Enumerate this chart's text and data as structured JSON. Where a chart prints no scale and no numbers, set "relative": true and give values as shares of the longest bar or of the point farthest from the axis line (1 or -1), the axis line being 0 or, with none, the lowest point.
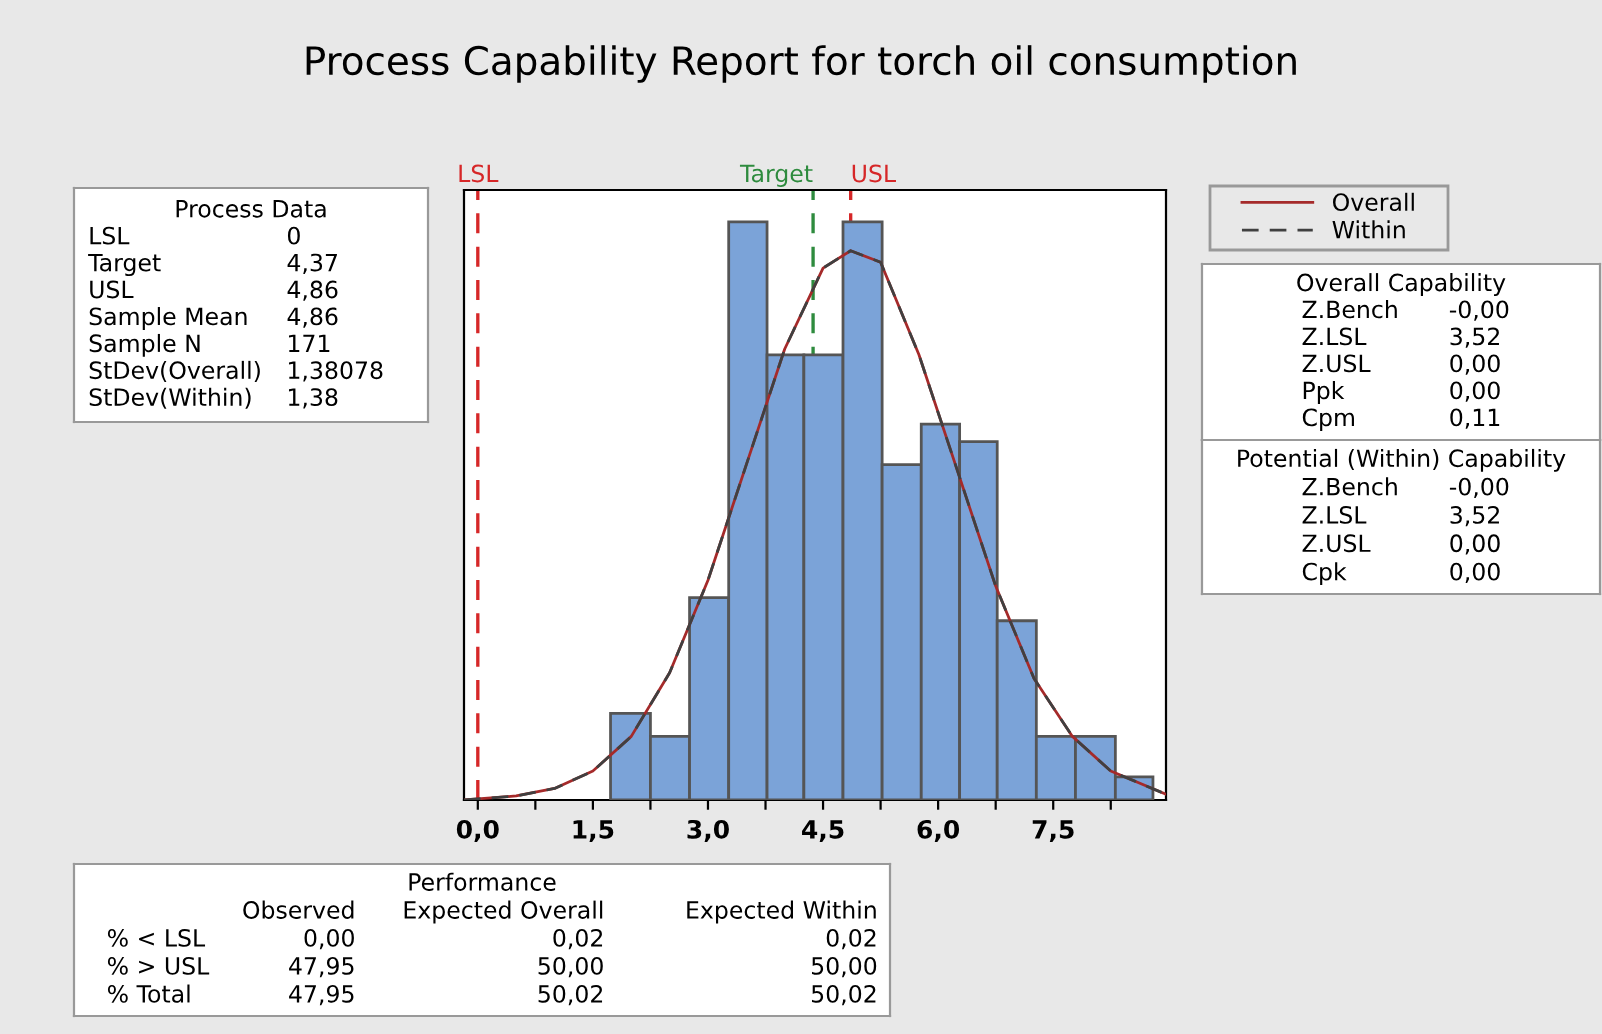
{
  "chart_data": [
    {
      "type": "histogram",
      "title": "Process Capability Report for torch oil consumption",
      "relative": true,
      "bins": [
        1.73,
        2.25,
        2.76,
        3.27,
        3.77,
        4.25,
        4.76,
        5.27,
        5.78,
        6.28,
        6.77,
        7.28,
        7.79,
        8.31,
        8.8
      ],
      "values": [
        0.15,
        0.11,
        0.35,
        1,
        0.77,
        0.77,
        1,
        0.58,
        0.65,
        0.62,
        0.31,
        0.11,
        0.11,
        0.04
      ],
      "color": "#7ba3d8",
      "series": [
        {
          "name": "Overall",
          "type": "line",
          "color": "#a52a2a",
          "line_style": "solid",
          "x": [
            -0.18,
            0,
            0.5,
            1.0,
            1.5,
            2.0,
            2.5,
            3.0,
            3.5,
            4.0,
            4.5,
            4.86,
            5.25,
            5.75,
            6.25,
            6.75,
            7.25,
            7.75,
            8.25,
            8.97
          ],
          "values": [
            0.0,
            0.002,
            0.007,
            0.02,
            0.05,
            0.11,
            0.22,
            0.38,
            0.58,
            0.78,
            0.92,
            0.95,
            0.93,
            0.77,
            0.57,
            0.37,
            0.21,
            0.11,
            0.05,
            0.01
          ]
        },
        {
          "name": "Within",
          "type": "line",
          "color": "#404040",
          "line_style": "dashed",
          "x": [
            -0.18,
            0,
            0.5,
            1.0,
            1.5,
            2.0,
            2.5,
            3.0,
            3.5,
            4.0,
            4.5,
            4.86,
            5.25,
            5.75,
            6.25,
            6.75,
            7.25,
            7.75,
            8.25,
            8.97
          ],
          "values": [
            0.0,
            0.002,
            0.007,
            0.02,
            0.05,
            0.11,
            0.22,
            0.38,
            0.58,
            0.78,
            0.92,
            0.95,
            0.93,
            0.77,
            0.57,
            0.37,
            0.21,
            0.11,
            0.05,
            0.01
          ]
        }
      ],
      "xlim": [
        -0.18,
        8.97
      ],
      "xticks": [
        {
          "value": 0,
          "label": "0,0"
        },
        {
          "value": 0.75,
          "label": null
        },
        {
          "value": 1.5,
          "label": "1,5"
        },
        {
          "value": 2.25,
          "label": null
        },
        {
          "value": 3,
          "label": "3,0"
        },
        {
          "value": 3.75,
          "label": null
        },
        {
          "value": 4.5,
          "label": "4,5"
        },
        {
          "value": 5.25,
          "label": null
        },
        {
          "value": 6,
          "label": "6,0"
        },
        {
          "value": 6.75,
          "label": null
        },
        {
          "value": 7.5,
          "label": "7,5"
        },
        {
          "value": 8.25,
          "label": null
        }
      ],
      "ref_lines": [
        {
          "axis": "x",
          "value": 0,
          "label": "LSL",
          "color": "#d62728",
          "line_style": "dashed"
        },
        {
          "axis": "x",
          "value": 4.37,
          "label": "Target",
          "color": "#2e8b3e",
          "line_style": "dashed"
        },
        {
          "axis": "x",
          "value": 4.86,
          "label": "USL",
          "color": "#d62728",
          "line_style": "dashed"
        }
      ],
      "grid": false,
      "legend": "right"
    },
    {
      "type": "other",
      "title": "Process Data",
      "y_categories": [
        "LSL",
        "Target",
        "USL",
        "Sample Mean",
        "Sample N",
        "StDev(Overall)",
        "StDev(Within)"
      ],
      "cell_labels": [
        [
          "0"
        ],
        [
          "4,37"
        ],
        [
          "4,86"
        ],
        [
          "4,86"
        ],
        [
          "171"
        ],
        [
          "1,38078"
        ],
        [
          "1,38"
        ]
      ]
    },
    {
      "type": "other",
      "title": "Overall Capability",
      "y_categories": [
        "Z.Bench",
        "Z.LSL",
        "Z.USL",
        "Ppk",
        "Cpm"
      ],
      "cell_labels": [
        [
          "-0,00"
        ],
        [
          "3,52"
        ],
        [
          "0,00"
        ],
        [
          "0,00"
        ],
        [
          "0,11"
        ]
      ]
    },
    {
      "type": "other",
      "title": "Potential (Within) Capability",
      "y_categories": [
        "Z.Bench",
        "Z.LSL",
        "Z.USL",
        "Cpk"
      ],
      "cell_labels": [
        [
          "-0,00"
        ],
        [
          "3,52"
        ],
        [
          "0,00"
        ],
        [
          "0,00"
        ]
      ]
    },
    {
      "type": "other",
      "title": "Performance",
      "categories": [
        "Observed",
        "Expected Overall",
        "Expected Within"
      ],
      "y_categories": [
        "% < LSL",
        "% > USL",
        "% Total"
      ],
      "cell_labels": [
        [
          "0,00",
          "0,02",
          "0,02"
        ],
        [
          "47,95",
          "50,00",
          "50,00"
        ],
        [
          "47,95",
          "50,02",
          "50,02"
        ]
      ]
    }
  ]
}
